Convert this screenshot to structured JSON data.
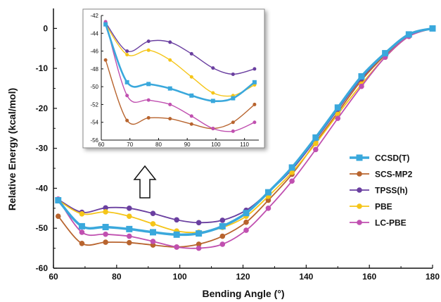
{
  "chart_data": [
    {
      "type": "line",
      "xlabel": "Bending Angle (°)",
      "ylabel": "Relative Energy (kcal/mol)",
      "xlim": [
        60,
        180
      ],
      "ylim": [
        -60,
        5
      ],
      "xticks": [
        60,
        80,
        100,
        120,
        140,
        160,
        180
      ],
      "yticks": [
        0,
        -10,
        -20,
        -30,
        -40,
        -50,
        -60
      ],
      "legend": "right",
      "series": [
        {
          "name": "CCSD(T)",
          "color": "#3aa8dc",
          "marker": "square",
          "x": [
            61.5,
            69,
            76.5,
            84,
            91.5,
            99,
            106,
            113.5,
            121,
            128,
            135.5,
            143,
            150,
            157.5,
            165,
            172.5,
            180
          ],
          "y": [
            -43,
            -49.5,
            -49.7,
            -50.2,
            -51,
            -51.6,
            -51.3,
            -49.5,
            -46.2,
            -41,
            -34.8,
            -27.3,
            -19.8,
            -12,
            -6.2,
            -1.5,
            0
          ]
        },
        {
          "name": "SCS-MP2",
          "color": "#b8642e",
          "marker": "circle",
          "x": [
            61.5,
            69,
            76.5,
            84,
            91.5,
            99,
            106,
            113.5,
            121,
            128,
            135.5,
            143,
            150,
            157.5,
            165,
            172.5,
            180
          ],
          "y": [
            -47,
            -53.8,
            -53.5,
            -53.6,
            -54.2,
            -54.7,
            -54,
            -52,
            -48.5,
            -43,
            -36.5,
            -28.5,
            -21,
            -13,
            -6.7,
            -1.8,
            0
          ]
        },
        {
          "name": "TPSS(h)",
          "color": "#6a3fa0",
          "marker": "circle",
          "x": [
            61.5,
            69,
            76.5,
            84,
            91.5,
            99,
            106,
            113.5,
            121,
            128,
            135.5,
            143,
            150,
            157.5,
            165,
            172.5,
            180
          ],
          "y": [
            -42.8,
            -46,
            -44.9,
            -45,
            -46.3,
            -47.9,
            -48.6,
            -48,
            -45.5,
            -41,
            -35.3,
            -27.8,
            -20.3,
            -12.5,
            -6.3,
            -1.5,
            0
          ]
        },
        {
          "name": "PBE",
          "color": "#f5c518",
          "marker": "circle",
          "x": [
            61.5,
            69,
            76.5,
            84,
            91.5,
            99,
            106,
            113.5,
            121,
            128,
            135.5,
            143,
            150,
            157.5,
            165,
            172.5,
            180
          ],
          "y": [
            -43,
            -46.4,
            -45.9,
            -47,
            -48.9,
            -50.7,
            -51,
            -49.8,
            -47,
            -42,
            -36,
            -28.8,
            -21.5,
            -14,
            -7.2,
            -2,
            0
          ]
        },
        {
          "name": "LC-PBE",
          "color": "#c050b0",
          "marker": "circle",
          "x": [
            61.5,
            69,
            76.5,
            84,
            91.5,
            99,
            106,
            113.5,
            121,
            128,
            135.5,
            143,
            150,
            157.5,
            165,
            172.5,
            180
          ],
          "y": [
            -42.7,
            -51,
            -51.5,
            -52,
            -53.3,
            -54.7,
            -55,
            -54,
            -50.5,
            -45,
            -38.2,
            -30.3,
            -22.5,
            -14.5,
            -7.2,
            -2,
            0
          ]
        }
      ]
    },
    {
      "type": "line",
      "xlim": [
        60,
        115
      ],
      "ylim": [
        -56,
        -42
      ],
      "xticks": [
        60,
        70,
        80,
        90,
        100,
        110
      ],
      "yticks": [
        -42,
        -44,
        -46,
        -48,
        -50,
        -52,
        -54,
        -56
      ],
      "series_ref": "main"
    }
  ],
  "icons": {
    "annotation_arrow": "up-arrow-outline-icon"
  }
}
